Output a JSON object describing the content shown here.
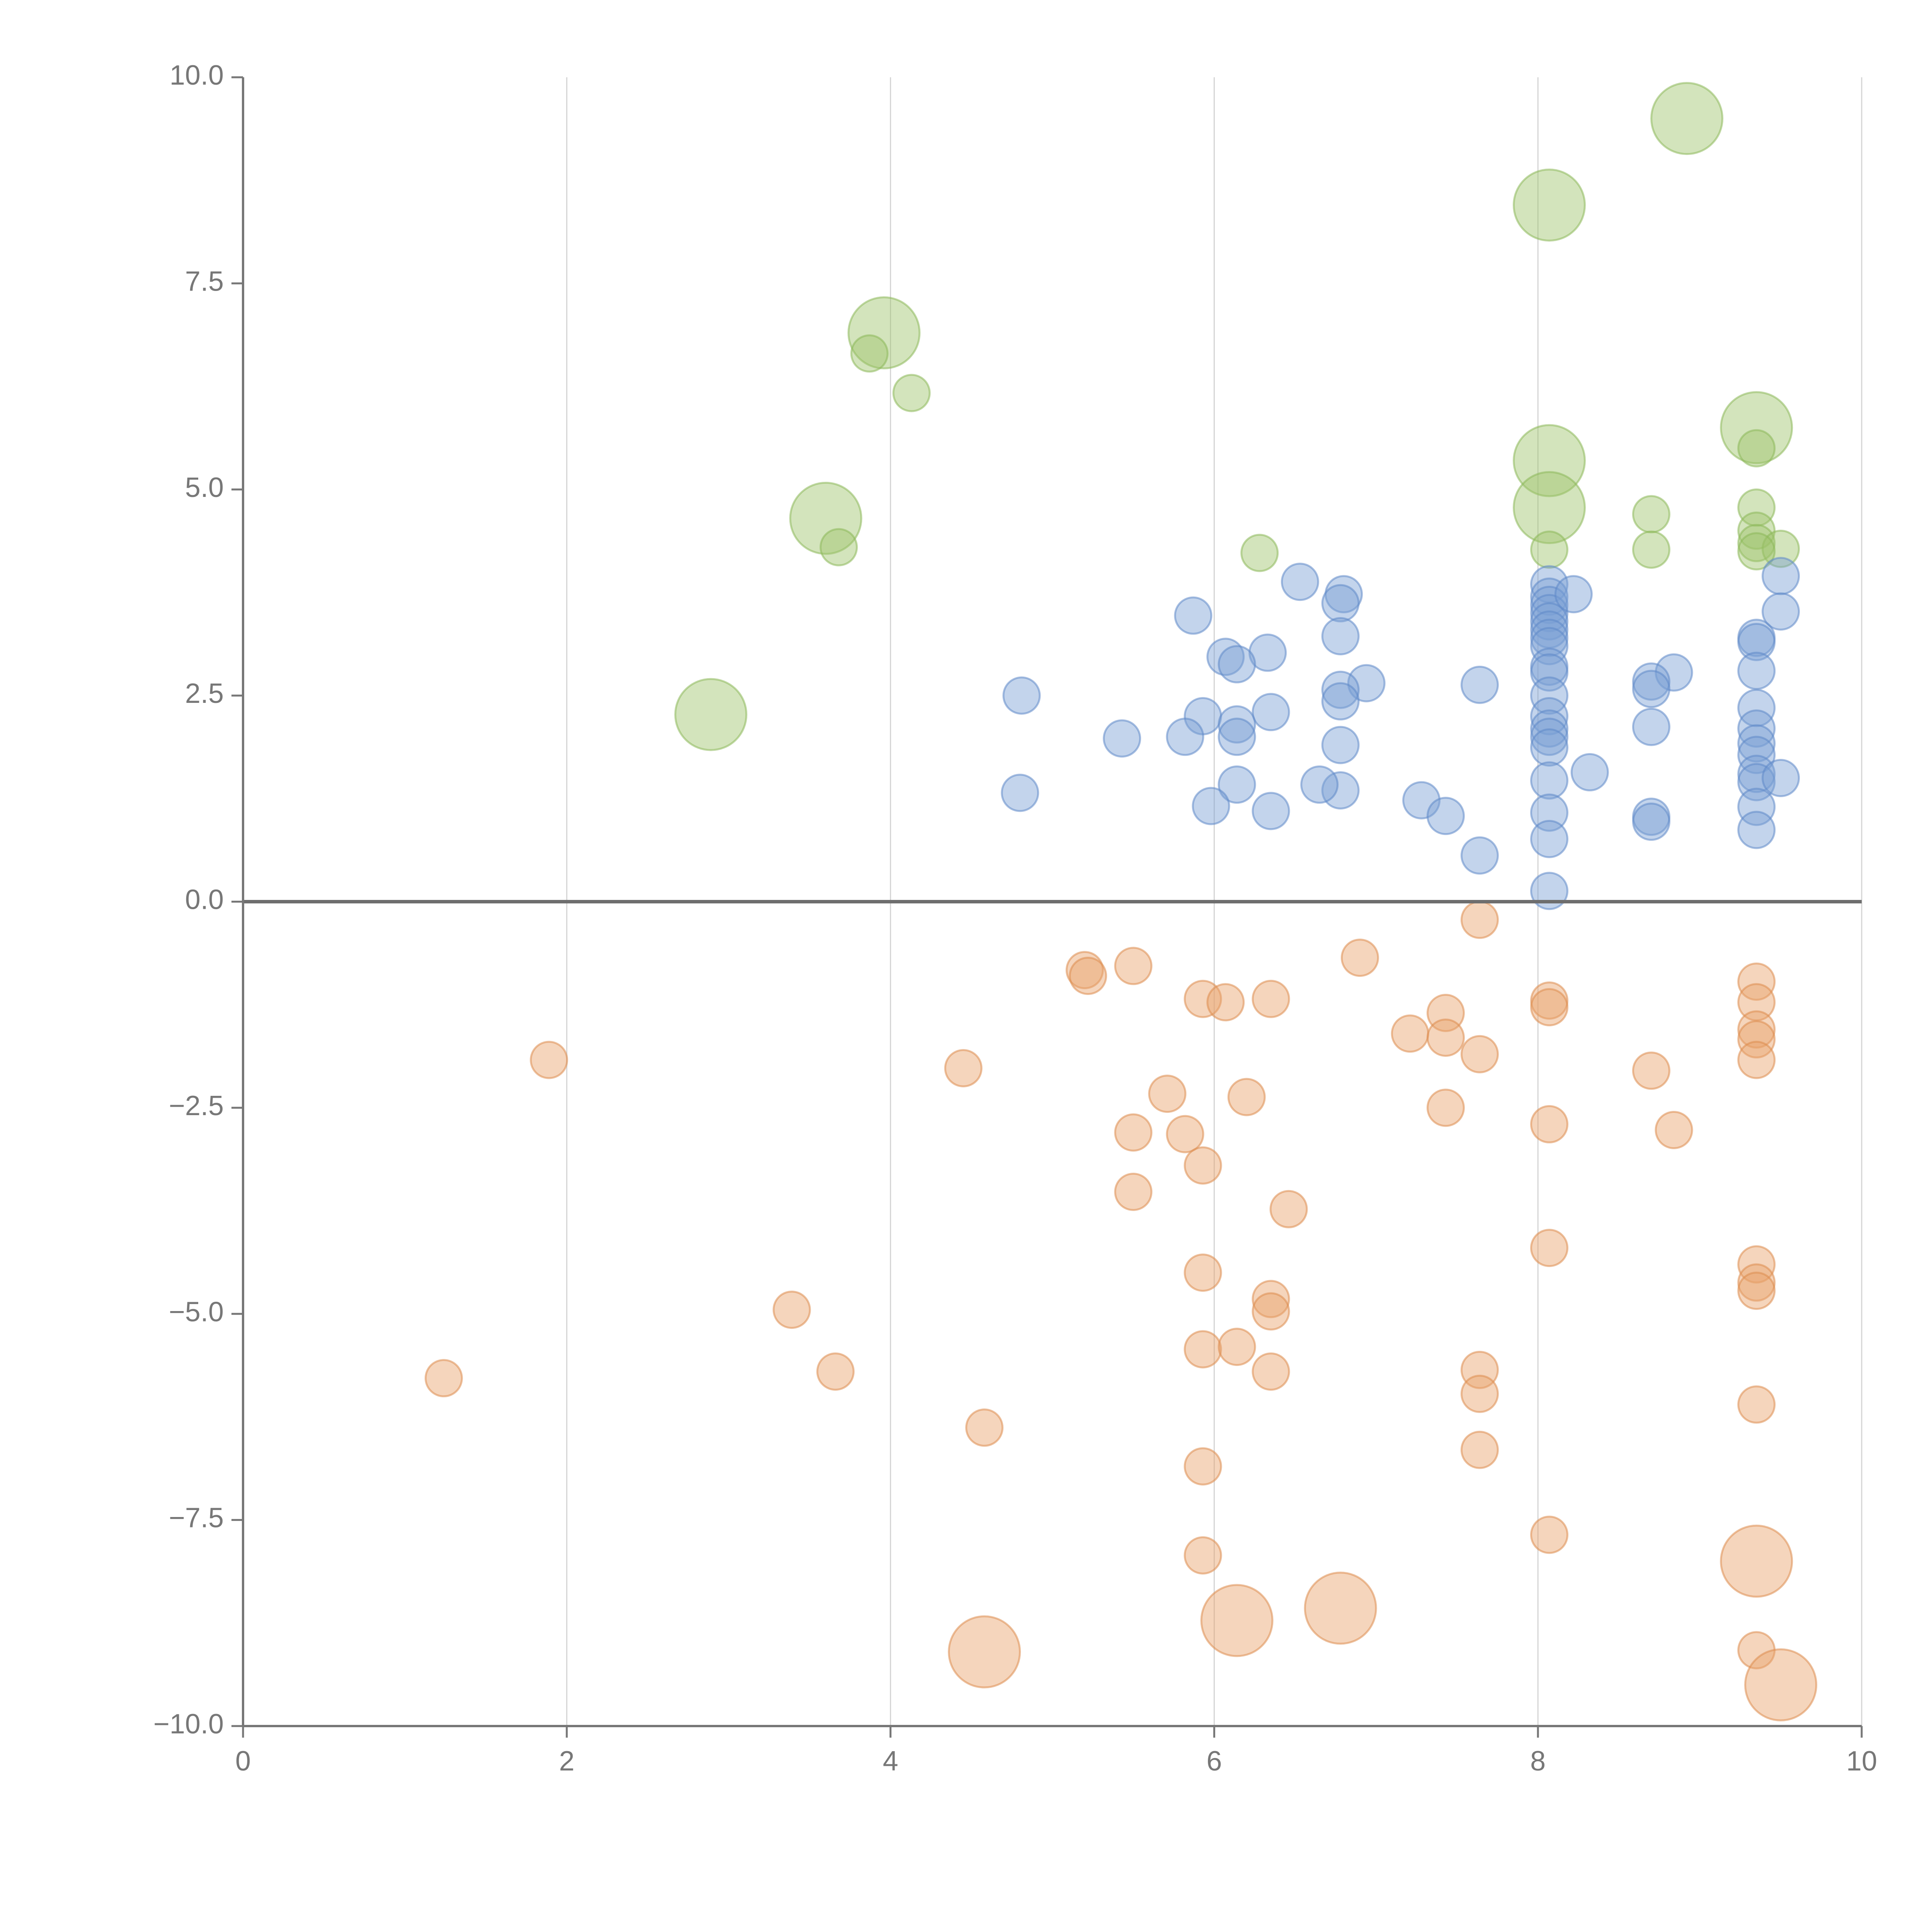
{
  "chart_data": {
    "type": "scatter",
    "title": "",
    "xlabel": "",
    "ylabel": "",
    "xlim": [
      0,
      10
    ],
    "ylim": [
      -10,
      10
    ],
    "grid": "vertical",
    "legend": "none",
    "x_ticks": [
      0,
      2,
      4,
      6,
      8,
      10
    ],
    "x_tick_labels": [
      "0",
      "2",
      "4",
      "6",
      "8",
      "10"
    ],
    "y_ticks": [
      -10,
      -7.5,
      -5,
      -2.5,
      0,
      2.5,
      5,
      7.5,
      10
    ],
    "y_tick_labels": [
      "−10.0",
      "−7.5",
      "−5.0",
      "−2.5",
      "0.0",
      "2.5",
      "5.0",
      "7.5",
      "10.0"
    ],
    "series": [
      {
        "name": "green",
        "color": "#9dc36b",
        "stroke": "#8db85a",
        "opacity": 0.45,
        "points": [
          [
            8.92,
            9.5,
            3
          ],
          [
            8.07,
            8.45,
            3
          ],
          [
            3.96,
            6.9,
            3
          ],
          [
            3.87,
            6.65,
            1
          ],
          [
            4.13,
            6.17,
            1
          ],
          [
            9.35,
            5.75,
            3
          ],
          [
            9.35,
            5.5,
            1
          ],
          [
            8.07,
            5.35,
            3
          ],
          [
            8.07,
            4.78,
            3
          ],
          [
            8.7,
            4.7,
            1
          ],
          [
            9.35,
            4.78,
            1
          ],
          [
            3.6,
            4.65,
            3
          ],
          [
            9.35,
            4.5,
            1
          ],
          [
            9.35,
            4.35,
            1
          ],
          [
            9.5,
            4.28,
            1
          ],
          [
            8.07,
            4.27,
            1
          ],
          [
            8.7,
            4.27,
            1
          ],
          [
            9.35,
            4.25,
            1
          ],
          [
            3.68,
            4.3,
            1
          ],
          [
            6.28,
            4.23,
            1
          ],
          [
            2.89,
            2.27,
            3
          ]
        ]
      },
      {
        "name": "blue",
        "color": "#7b9fd4",
        "stroke": "#5f88c8",
        "opacity": 0.45,
        "points": [
          [
            6.53,
            3.88,
            1
          ],
          [
            6.8,
            3.73,
            1
          ],
          [
            6.78,
            3.62,
            1
          ],
          [
            5.87,
            3.47,
            1
          ],
          [
            8.07,
            3.85,
            1
          ],
          [
            8.07,
            3.7,
            1
          ],
          [
            8.07,
            3.6,
            1
          ],
          [
            8.07,
            3.5,
            1
          ],
          [
            8.07,
            3.4,
            1
          ],
          [
            8.07,
            3.3,
            1
          ],
          [
            8.07,
            3.2,
            1
          ],
          [
            8.07,
            3.1,
            1
          ],
          [
            8.07,
            2.85,
            1
          ],
          [
            8.07,
            2.78,
            1
          ],
          [
            8.07,
            2.5,
            1
          ],
          [
            8.07,
            2.25,
            1
          ],
          [
            8.07,
            2.1,
            1
          ],
          [
            8.07,
            2.0,
            1
          ],
          [
            8.07,
            1.87,
            1
          ],
          [
            8.07,
            1.47,
            1
          ],
          [
            8.07,
            1.08,
            1
          ],
          [
            8.07,
            0.76,
            1
          ],
          [
            8.07,
            0.13,
            1
          ],
          [
            8.22,
            3.73,
            1
          ],
          [
            6.78,
            3.22,
            1
          ],
          [
            6.33,
            3.02,
            1
          ],
          [
            6.07,
            2.97,
            1
          ],
          [
            6.14,
            2.88,
            1
          ],
          [
            9.35,
            3.2,
            1
          ],
          [
            9.35,
            3.15,
            1
          ],
          [
            9.35,
            2.8,
            1
          ],
          [
            9.35,
            2.35,
            1
          ],
          [
            9.35,
            2.1,
            1
          ],
          [
            9.35,
            1.92,
            1
          ],
          [
            9.35,
            1.78,
            1
          ],
          [
            9.35,
            1.55,
            1
          ],
          [
            9.35,
            1.45,
            1
          ],
          [
            9.35,
            1.15,
            1
          ],
          [
            9.35,
            0.87,
            1
          ],
          [
            9.5,
            3.95,
            1
          ],
          [
            9.5,
            3.52,
            1
          ],
          [
            9.5,
            1.5,
            1
          ],
          [
            8.84,
            2.78,
            1
          ],
          [
            8.7,
            2.67,
            1
          ],
          [
            8.7,
            2.58,
            1
          ],
          [
            8.7,
            2.12,
            1
          ],
          [
            8.7,
            1.03,
            1
          ],
          [
            8.7,
            0.97,
            1
          ],
          [
            6.94,
            2.65,
            1
          ],
          [
            6.78,
            2.57,
            1
          ],
          [
            6.78,
            2.43,
            1
          ],
          [
            6.78,
            1.9,
            1
          ],
          [
            6.78,
            1.35,
            1
          ],
          [
            7.64,
            2.63,
            1
          ],
          [
            4.81,
            2.5,
            1
          ],
          [
            5.93,
            2.25,
            1
          ],
          [
            6.35,
            2.3,
            1
          ],
          [
            6.14,
            2.15,
            1
          ],
          [
            6.14,
            2.0,
            1
          ],
          [
            5.82,
            2.0,
            1
          ],
          [
            5.43,
            1.98,
            1
          ],
          [
            8.32,
            1.57,
            1
          ],
          [
            6.14,
            1.42,
            1
          ],
          [
            6.65,
            1.42,
            1
          ],
          [
            4.8,
            1.32,
            1
          ],
          [
            7.28,
            1.23,
            1
          ],
          [
            5.98,
            1.16,
            1
          ],
          [
            6.35,
            1.1,
            1
          ],
          [
            7.43,
            1.04,
            1
          ],
          [
            7.64,
            0.56,
            1
          ]
        ]
      },
      {
        "name": "orange",
        "color": "#e8a26a",
        "stroke": "#dc8c4e",
        "opacity": 0.45,
        "points": [
          [
            7.64,
            -0.22,
            1
          ],
          [
            6.9,
            -0.68,
            1
          ],
          [
            5.5,
            -0.78,
            1
          ],
          [
            5.2,
            -0.83,
            1
          ],
          [
            5.22,
            -0.9,
            1
          ],
          [
            5.93,
            -1.18,
            1
          ],
          [
            6.07,
            -1.22,
            1
          ],
          [
            6.35,
            -1.18,
            1
          ],
          [
            8.07,
            -1.2,
            1
          ],
          [
            8.07,
            -1.28,
            1
          ],
          [
            7.43,
            -1.35,
            1
          ],
          [
            7.21,
            -1.6,
            1
          ],
          [
            7.43,
            -1.65,
            1
          ],
          [
            7.64,
            -1.85,
            1
          ],
          [
            9.35,
            -0.97,
            1
          ],
          [
            9.35,
            -1.22,
            1
          ],
          [
            9.35,
            -1.55,
            1
          ],
          [
            9.35,
            -1.67,
            1
          ],
          [
            9.35,
            -1.92,
            1
          ],
          [
            8.7,
            -2.05,
            1
          ],
          [
            1.89,
            -1.92,
            1
          ],
          [
            4.45,
            -2.02,
            1
          ],
          [
            5.71,
            -2.33,
            1
          ],
          [
            6.2,
            -2.37,
            1
          ],
          [
            7.43,
            -2.5,
            1
          ],
          [
            8.07,
            -2.7,
            1
          ],
          [
            8.84,
            -2.77,
            1
          ],
          [
            5.5,
            -2.8,
            1
          ],
          [
            5.82,
            -2.82,
            1
          ],
          [
            5.93,
            -3.2,
            1
          ],
          [
            5.5,
            -3.52,
            1
          ],
          [
            6.46,
            -3.73,
            1
          ],
          [
            8.07,
            -4.2,
            1
          ],
          [
            5.93,
            -4.5,
            1
          ],
          [
            9.35,
            -4.4,
            1
          ],
          [
            9.35,
            -4.62,
            1
          ],
          [
            9.35,
            -4.72,
            1
          ],
          [
            6.35,
            -4.82,
            1
          ],
          [
            6.35,
            -4.97,
            1
          ],
          [
            3.39,
            -4.95,
            1
          ],
          [
            5.93,
            -5.43,
            1
          ],
          [
            6.14,
            -5.4,
            1
          ],
          [
            1.24,
            -5.78,
            1
          ],
          [
            3.66,
            -5.7,
            1
          ],
          [
            6.35,
            -5.7,
            1
          ],
          [
            7.64,
            -5.68,
            1
          ],
          [
            7.64,
            -5.97,
            1
          ],
          [
            9.35,
            -6.1,
            1
          ],
          [
            4.58,
            -6.38,
            1
          ],
          [
            7.64,
            -6.65,
            1
          ],
          [
            5.93,
            -6.85,
            1
          ],
          [
            5.93,
            -7.93,
            1
          ],
          [
            8.07,
            -7.68,
            1
          ],
          [
            9.35,
            -8.0,
            3
          ],
          [
            6.78,
            -8.57,
            3
          ],
          [
            6.14,
            -8.72,
            3
          ],
          [
            4.58,
            -9.1,
            3
          ],
          [
            9.35,
            -9.08,
            1
          ],
          [
            9.5,
            -9.5,
            3
          ]
        ]
      }
    ],
    "size_scale_note": "third value of each point: 1 = small bubble, 3 = large bubble"
  }
}
